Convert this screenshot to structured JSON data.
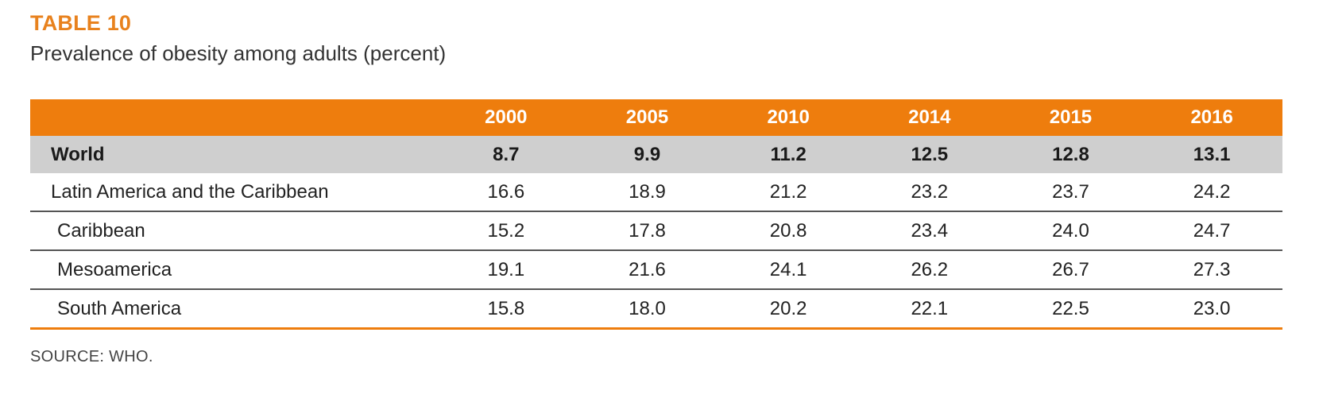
{
  "table_label": "TABLE 10",
  "subtitle": "Prevalence of obesity among adults (percent)",
  "header": {
    "corner": "",
    "years": [
      "2000",
      "2005",
      "2010",
      "2014",
      "2015",
      "2016"
    ]
  },
  "rows": [
    {
      "label": "World",
      "values": [
        "8.7",
        "9.9",
        "11.2",
        "12.5",
        "12.8",
        "13.1"
      ]
    },
    {
      "label": "Latin America and the Caribbean",
      "values": [
        "16.6",
        "18.9",
        "21.2",
        "23.2",
        "23.7",
        "24.2"
      ]
    },
    {
      "label": "Caribbean",
      "values": [
        "15.2",
        "17.8",
        "20.8",
        "23.4",
        "24.0",
        "24.7"
      ]
    },
    {
      "label": "Mesoamerica",
      "values": [
        "19.1",
        "21.6",
        "24.1",
        "26.2",
        "26.7",
        "27.3"
      ]
    },
    {
      "label": "South America",
      "values": [
        "15.8",
        "18.0",
        "20.2",
        "22.1",
        "22.5",
        "23.0"
      ]
    }
  ],
  "source": "SOURCE: WHO.",
  "colors": {
    "accent": "#ee7d0d",
    "header_text": "#ffffff",
    "world_row_bg": "#cfcfcf"
  }
}
